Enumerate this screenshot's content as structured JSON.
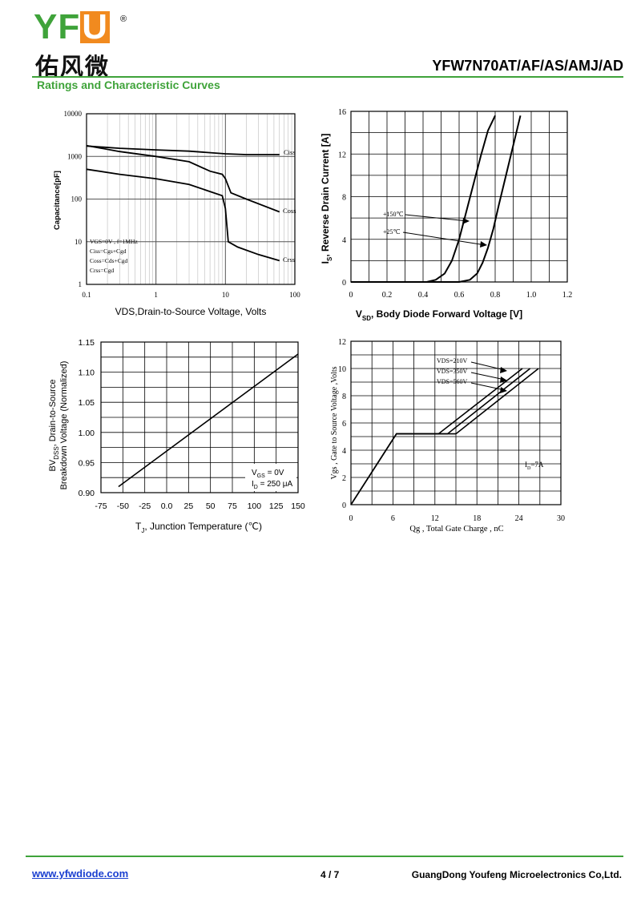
{
  "header": {
    "logo_letters": "YF",
    "logo_u": "U",
    "logo_registered": "®",
    "logo_cn": "佑风微",
    "part_number": "YFW7N70AT/AF/AS/AMJ/AD",
    "section_title": "Ratings and Characteristic Curves"
  },
  "colors": {
    "brand_green": "#3fa33a",
    "brand_orange": "#f18a1f",
    "link_blue": "#1a3fd0"
  },
  "chart_data": [
    {
      "id": "capacitance",
      "type": "line",
      "x_scale": "log",
      "y_scale": "log",
      "xlim": [
        0.1,
        100
      ],
      "ylim": [
        1,
        10000
      ],
      "xticks": [
        "0.1",
        "1",
        "10",
        "100"
      ],
      "yticks": [
        "1",
        "10",
        "100",
        "1000",
        "10000"
      ],
      "xlabel": "VDS,Drain-to-Source Voltage, Volts",
      "ylabel": "Capacitance[pF]",
      "grid": true,
      "conditions": [
        "VGS=0V , f=1MHz",
        "Ciss=Cgs+Cgd",
        "Coss=Cds+Cgd",
        "Crss=Cgd"
      ],
      "series": [
        {
          "name": "Ciss",
          "x": [
            0.1,
            0.3,
            1,
            3,
            10,
            20,
            60
          ],
          "y": [
            1750,
            1550,
            1420,
            1330,
            1150,
            1100,
            1100
          ]
        },
        {
          "name": "Coss",
          "x": [
            0.1,
            0.3,
            1,
            3,
            6,
            9,
            10,
            12,
            20,
            60
          ],
          "y": [
            1800,
            1300,
            1000,
            750,
            450,
            380,
            300,
            140,
            100,
            50
          ]
        },
        {
          "name": "Crss",
          "x": [
            0.1,
            0.3,
            1,
            3,
            6,
            9,
            10,
            11,
            15,
            30,
            60
          ],
          "y": [
            500,
            380,
            300,
            220,
            150,
            120,
            60,
            10,
            7.5,
            5,
            3.6
          ]
        }
      ]
    },
    {
      "id": "body-diode",
      "type": "line",
      "xlim": [
        0,
        1.2
      ],
      "ylim": [
        0,
        16
      ],
      "xticks": [
        "0",
        "0.2",
        "0.4",
        "0.6",
        "0.8",
        "1.0",
        "1.2"
      ],
      "yticks": [
        "0",
        "4",
        "8",
        "12",
        "16"
      ],
      "xlabel_main": "V",
      "xlabel_sub": "SD",
      "xlabel_rest": ", Body Diode Forward Voltage [V]",
      "ylabel_main": "I",
      "ylabel_sub": "S",
      "ylabel_rest": ", Reverse Drain Current [A]",
      "grid": true,
      "series": [
        {
          "name": "+150℃",
          "x": [
            0,
            0.42,
            0.47,
            0.52,
            0.56,
            0.6,
            0.64,
            0.68,
            0.72,
            0.76,
            0.8
          ],
          "y": [
            0,
            0,
            0.2,
            0.8,
            2,
            4,
            6.6,
            9.2,
            11.8,
            14.2,
            15.6
          ]
        },
        {
          "name": "+25℃",
          "x": [
            0,
            0.6,
            0.66,
            0.7,
            0.73,
            0.76,
            0.79,
            0.82,
            0.86,
            0.9,
            0.94
          ],
          "y": [
            0,
            0,
            0.2,
            0.8,
            1.8,
            3.2,
            5,
            7.2,
            10,
            12.8,
            15.6
          ]
        }
      ],
      "annotations": [
        "+150℃",
        "+25℃"
      ]
    },
    {
      "id": "breakdown",
      "type": "line",
      "xlim": [
        -75,
        150
      ],
      "ylim": [
        0.9,
        1.15
      ],
      "xticks": [
        "-75",
        "-50",
        "-25",
        "0.0",
        "25",
        "50",
        "75",
        "100",
        "125",
        "150"
      ],
      "yticks": [
        "0.90",
        "0.95",
        "1.00",
        "1.05",
        "1.10",
        "1.15"
      ],
      "xlabel_main": "T",
      "xlabel_sub": "J",
      "xlabel_rest": ", Junction Temperature (℃)",
      "ylabel_line1_main": "BV",
      "ylabel_line1_sub": "DSS",
      "ylabel_line1_rest": ", Drain-to-Source",
      "ylabel_line2": "Breakdown Voltage (Normalized)",
      "grid": true,
      "legend_vgs_main": "V",
      "legend_vgs_sub": "GS",
      "legend_vgs_rest": " = 0V",
      "legend_id_main": "I",
      "legend_id_sub": "D",
      "legend_id_rest": " = 250 μA",
      "series": [
        {
          "x": [
            -55,
            150
          ],
          "y": [
            0.91,
            1.13
          ]
        }
      ]
    },
    {
      "id": "gate-charge",
      "type": "line",
      "xlim": [
        0,
        30
      ],
      "ylim": [
        0,
        12
      ],
      "xticks": [
        "0",
        "6",
        "12",
        "18",
        "24",
        "30"
      ],
      "yticks": [
        "0",
        "2",
        "4",
        "6",
        "8",
        "10",
        "12"
      ],
      "xlabel": "Qg , Total Gate Charge , nC",
      "ylabel": "Vgs , Gate to Source Voltage ,Volts",
      "grid": true,
      "id_main": "I",
      "id_sub": "D",
      "id_rest": "=7A",
      "series": [
        {
          "name": "VDS=210V",
          "x": [
            0,
            6.5,
            12.5,
            24.5
          ],
          "y": [
            0,
            5.2,
            5.2,
            10
          ]
        },
        {
          "name": "VDS=350V",
          "x": [
            0,
            6.5,
            13.8,
            25.6
          ],
          "y": [
            0,
            5.2,
            5.2,
            10
          ]
        },
        {
          "name": "VDS=560V",
          "x": [
            0,
            6.5,
            15,
            26.8
          ],
          "y": [
            0,
            5.2,
            5.2,
            10
          ]
        }
      ]
    }
  ],
  "footer": {
    "website": "www.yfwdiode.com",
    "page": "4 / 7",
    "company": "GuangDong Youfeng Microelectronics Co,Ltd."
  }
}
